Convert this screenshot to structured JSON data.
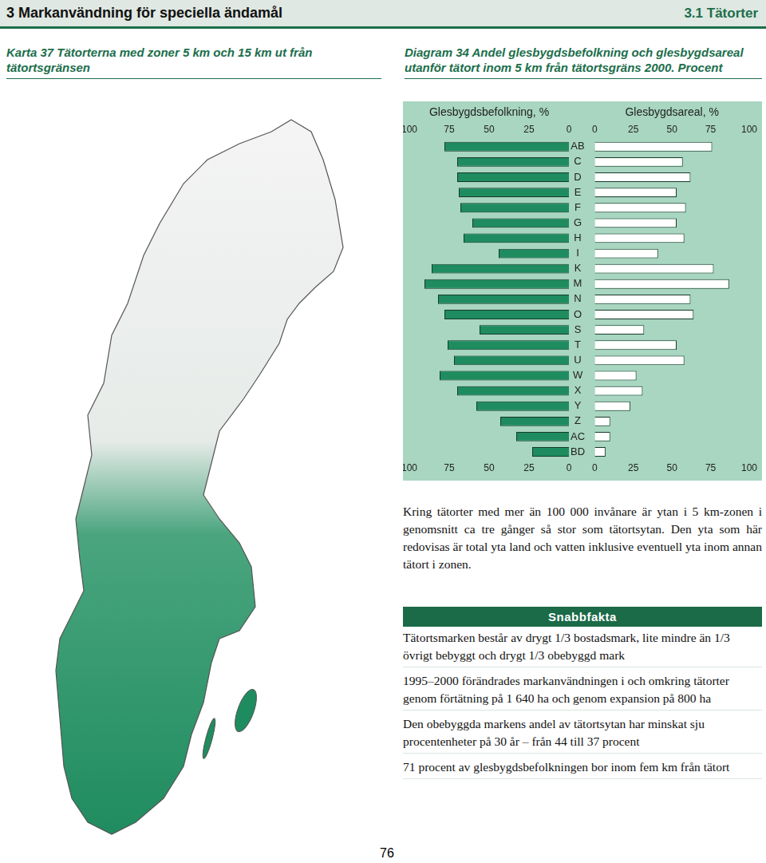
{
  "header": {
    "left": "3 Markanvändning för speciella ändamål",
    "right": "3.1 Tätorter"
  },
  "map": {
    "title": "Karta 37 Tätorterna med zoner 5 km och 15 km ut från tätortsgränsen"
  },
  "chart_data": {
    "type": "bar",
    "orientation": "horizontal",
    "title": "Diagram 34 Andel glesbygdsbefolkning och glesbygdsareal utanför tätort inom 5 km från tätortsgräns 2000. Procent",
    "categories": [
      "AB",
      "C",
      "D",
      "E",
      "F",
      "G",
      "H",
      "I",
      "K",
      "M",
      "N",
      "O",
      "S",
      "T",
      "U",
      "W",
      "X",
      "Y",
      "Z",
      "AC",
      "BD"
    ],
    "series": [
      {
        "name": "Glesbygdsbefolkning, %",
        "color": "#1e8c5f",
        "values": [
          78,
          70,
          70,
          69,
          68,
          60.5,
          66,
          44,
          86,
          90.5,
          82,
          78,
          56,
          76,
          72,
          81,
          70,
          58,
          43,
          33,
          23
        ]
      },
      {
        "name": "Glesbygdsareal, %",
        "color": "#ffffff",
        "values": [
          76,
          57,
          62,
          53,
          59,
          53,
          58,
          41,
          77,
          87,
          62,
          64,
          32,
          53,
          58,
          27,
          31,
          23,
          10,
          10,
          7
        ]
      }
    ],
    "xlim": [
      0,
      100
    ],
    "xticks": [
      0,
      25,
      50,
      75,
      100
    ],
    "grid": false
  },
  "text": "Kring tätorter med mer än 100 000 invånare är ytan i 5 km-zonen i genomsnitt ca tre gånger så stor som tätortsytan. Den yta som här redovisas är total yta land och vatten inklusive eventuell yta inom annan tätort i zonen.",
  "snabbfakta": {
    "title": "Snabbfakta",
    "items": [
      "Tätortsmarken består av drygt 1/3 bostadsmark, lite mindre än 1/3 övrigt bebyggt och drygt 1/3 obebyggd mark",
      "1995–2000 förändrades markanvändningen i och omkring tätorter genom förtätning på 1 640 ha och genom expansion på 800 ha",
      "Den obebyggda markens andel av tätortsytan har minskat sju procentenheter på 30 år – från 44 till 37 procent",
      "71 procent av glesbygdsbefolkningen bor inom fem km från tätort"
    ]
  },
  "page_number": "76"
}
